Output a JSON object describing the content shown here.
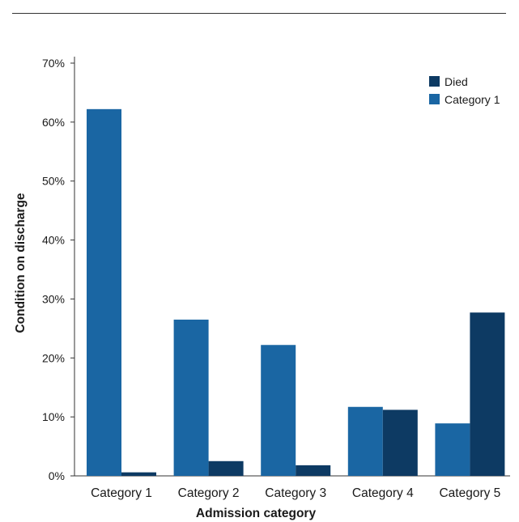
{
  "chart_data": {
    "type": "bar",
    "title": "",
    "xlabel": "Admission category",
    "ylabel": "Condition on discharge",
    "categories": [
      "Category 1",
      "Category 2",
      "Category 3",
      "Category 4",
      "Category 5"
    ],
    "series": [
      {
        "name": "Category 1",
        "color": "#1a66a3",
        "values": [
          62.2,
          26.5,
          22.2,
          11.7,
          8.9
        ]
      },
      {
        "name": "Died",
        "color": "#0d3a63",
        "values": [
          0.6,
          2.5,
          1.8,
          11.2,
          27.7
        ]
      }
    ],
    "ylim": [
      0,
      70
    ],
    "yticks": [
      0,
      10,
      20,
      30,
      40,
      50,
      60,
      70
    ],
    "ytick_suffix": "%",
    "legend_position": "top-right",
    "legend_order": [
      "Died",
      "Category 1"
    ],
    "grid": false
  }
}
